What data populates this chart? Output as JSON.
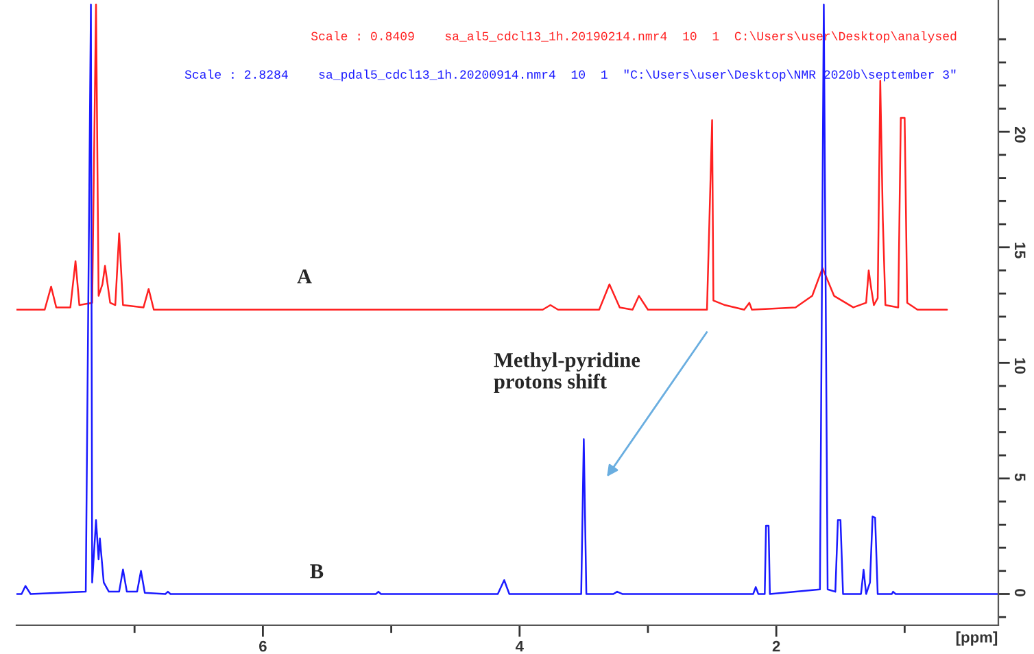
{
  "chart_data": {
    "type": "line",
    "xlabel": "[ppm]",
    "xlim": [
      7.92,
      0.27
    ],
    "xticks": [
      {
        "value": 7,
        "label": null
      },
      6,
      {
        "value": 5,
        "label": null
      },
      4,
      {
        "value": 3,
        "label": null
      },
      2,
      {
        "value": 1,
        "label": null
      }
    ],
    "ylim": [
      -1.35,
      25.7
    ],
    "yticks": [
      {
        "value": -1,
        "label": null
      },
      0,
      {
        "value": 1,
        "label": null
      },
      {
        "value": 2,
        "label": null
      },
      {
        "value": 3,
        "label": null
      },
      {
        "value": 4,
        "label": null
      },
      5,
      {
        "value": 6,
        "label": null
      },
      {
        "value": 7,
        "label": null
      },
      {
        "value": 8,
        "label": null
      },
      {
        "value": 9,
        "label": null
      },
      10,
      {
        "value": 11,
        "label": null
      },
      {
        "value": 12,
        "label": null
      },
      {
        "value": 13,
        "label": null
      },
      {
        "value": 14,
        "label": null
      },
      15,
      {
        "value": 16,
        "label": null
      },
      {
        "value": 17,
        "label": null
      },
      {
        "value": 18,
        "label": null
      },
      {
        "value": 19,
        "label": null
      },
      20,
      {
        "value": 21,
        "label": null
      },
      {
        "value": 22,
        "label": null
      },
      {
        "value": 23,
        "label": null
      },
      {
        "value": 24,
        "label": null
      }
    ],
    "grid": false,
    "series": [
      {
        "name": "Scale : 0.8409    sa_al5_cdcl13_1h.20190214.nmr4  10  1  C:\\Users\\user\\Desktop\\analysed",
        "color": "#ff2020",
        "x": [
          7.92,
          7.7,
          7.65,
          7.61,
          7.5,
          7.46,
          7.43,
          7.33,
          7.3,
          7.28,
          7.25,
          7.23,
          7.19,
          7.15,
          7.12,
          7.09,
          6.93,
          6.89,
          6.85,
          3.82,
          3.76,
          3.7,
          3.38,
          3.3,
          3.22,
          3.12,
          3.07,
          3.0,
          2.54,
          2.5,
          2.49,
          2.4,
          2.25,
          2.21,
          2.19,
          1.85,
          1.72,
          1.64,
          1.55,
          1.4,
          1.3,
          1.28,
          1.26,
          1.24,
          1.21,
          1.19,
          1.17,
          1.15,
          1.05,
          1.03,
          1.0,
          0.98,
          0.9,
          0.67
        ],
        "values": [
          12.3,
          12.3,
          13.3,
          12.4,
          12.4,
          14.4,
          12.5,
          12.6,
          25.5,
          12.9,
          13.4,
          14.2,
          12.6,
          12.5,
          15.6,
          12.5,
          12.4,
          13.2,
          12.3,
          12.3,
          12.5,
          12.3,
          12.3,
          13.4,
          12.4,
          12.3,
          12.9,
          12.3,
          12.3,
          20.5,
          12.7,
          12.5,
          12.3,
          12.6,
          12.3,
          12.4,
          12.9,
          14.1,
          12.9,
          12.4,
          12.6,
          14.0,
          13.2,
          12.5,
          12.8,
          22.2,
          16.2,
          12.5,
          12.4,
          20.6,
          20.6,
          12.6,
          12.3,
          12.3
        ]
      },
      {
        "name": "Scale : 2.8284    sa_pdal5_cdcl13_1h.20200914.nmr4  10  1  \"C:\\Users\\user\\Desktop\\NMR 2020b\\september 3\"",
        "color": "#1a1aff",
        "x": [
          7.92,
          7.88,
          7.85,
          7.81,
          7.38,
          7.34,
          7.33,
          7.3,
          7.28,
          7.27,
          7.24,
          7.2,
          7.12,
          7.09,
          7.06,
          6.98,
          6.95,
          6.92,
          6.76,
          6.74,
          6.72,
          5.12,
          5.1,
          5.08,
          4.17,
          4.12,
          4.08,
          3.52,
          3.5,
          3.48,
          3.27,
          3.24,
          3.2,
          2.7,
          2.18,
          2.16,
          2.14,
          2.09,
          2.08,
          2.06,
          2.05,
          1.66,
          1.63,
          1.6,
          1.54,
          1.52,
          1.5,
          1.48,
          1.34,
          1.32,
          1.3,
          1.27,
          1.25,
          1.23,
          1.21,
          1.1,
          1.09,
          1.07,
          0.27
        ],
        "values": [
          0,
          0,
          0.35,
          0,
          0.1,
          25.5,
          0.5,
          3.2,
          1.5,
          2.4,
          0.5,
          0.1,
          0.1,
          1.06,
          0.1,
          0.1,
          1.0,
          0.05,
          0,
          0.1,
          0,
          0,
          0.1,
          0,
          0,
          0.6,
          0,
          0,
          6.7,
          0,
          0,
          0.1,
          0,
          0,
          0,
          0.3,
          0,
          0,
          2.95,
          2.95,
          0,
          0.2,
          25.5,
          0.2,
          0.1,
          3.2,
          3.2,
          0,
          0,
          1.05,
          0,
          0.5,
          3.35,
          3.3,
          0,
          0,
          0.1,
          0,
          0
        ]
      }
    ],
    "annotations": [
      "A",
      "B",
      "Methyl-pyridine\nprotons shift"
    ]
  }
}
